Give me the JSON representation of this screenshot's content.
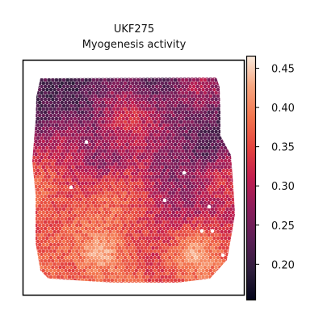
{
  "chart_data": {
    "type": "heatmap",
    "title": "UKF275",
    "subtitle": "Myogenesis activity",
    "xlabel": "",
    "ylabel": "",
    "grid": false,
    "colormap": "rocket",
    "colorbar": {
      "range": [
        0.155,
        0.465
      ],
      "ticks": [
        0.2,
        0.25,
        0.3,
        0.35,
        0.4,
        0.45
      ],
      "tick_labels": [
        "0.20",
        "0.25",
        "0.30",
        "0.35",
        "0.40",
        "0.45"
      ]
    },
    "value_summary": {
      "upper_region": "lower (~0.22-0.30)",
      "lower_region": "higher (~0.35-0.45)"
    }
  }
}
